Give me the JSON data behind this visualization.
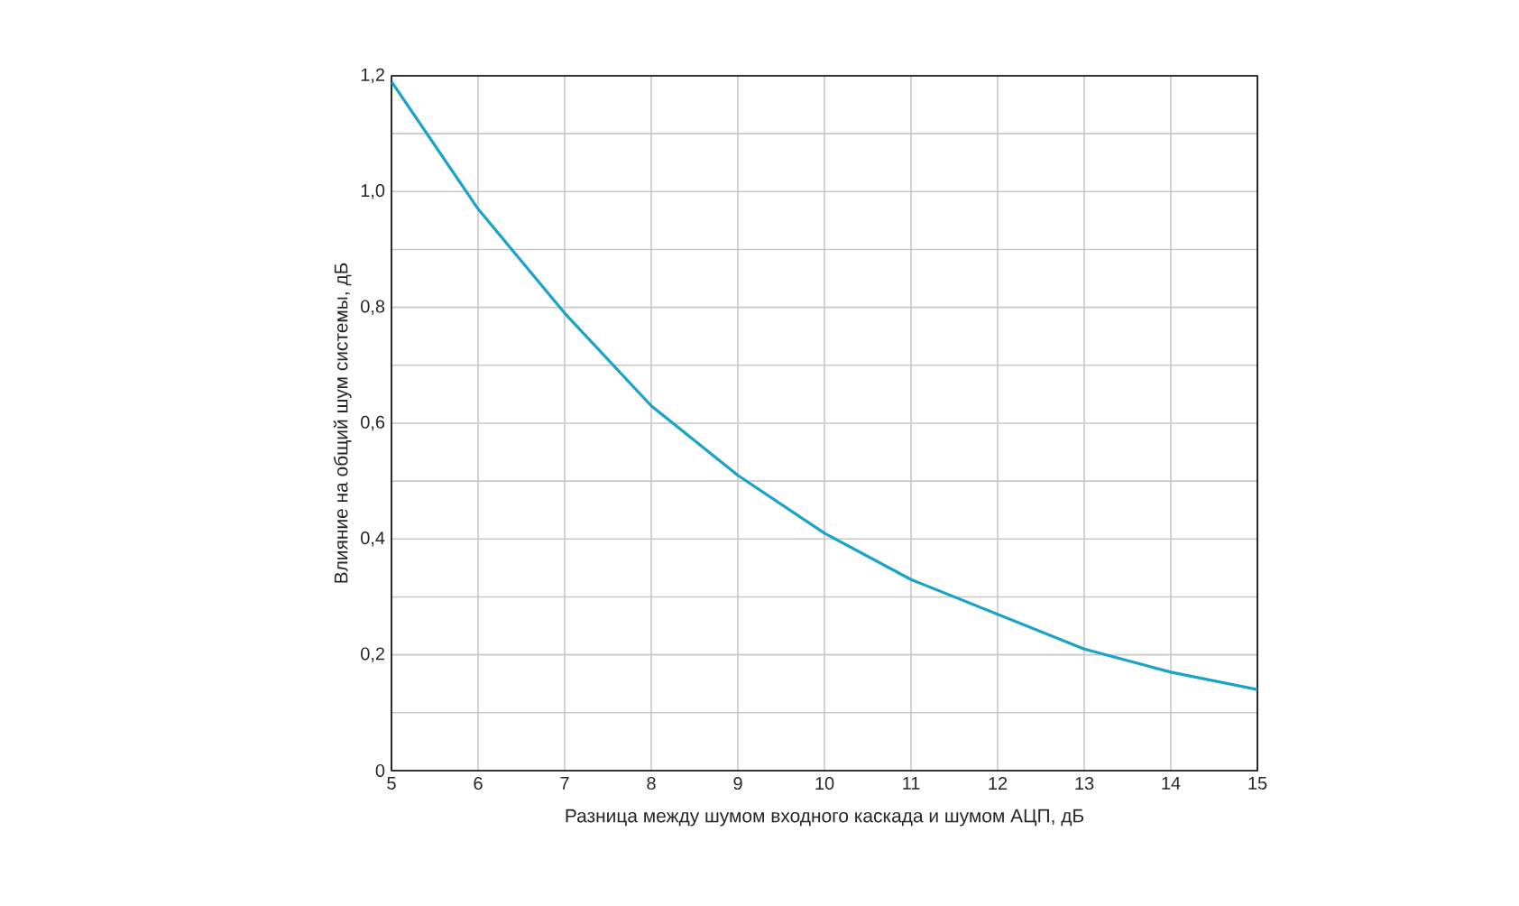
{
  "chart_data": {
    "type": "line",
    "xlabel": "Разница между шумом входного каскада и шумом АЦП, дБ",
    "ylabel": "Влияние на общий шум системы, дБ",
    "x": [
      5,
      6,
      7,
      8,
      9,
      10,
      11,
      12,
      13,
      14,
      15
    ],
    "series": [
      {
        "color": "#1aa3c8",
        "values": [
          1.19,
          0.97,
          0.79,
          0.63,
          0.51,
          0.41,
          0.33,
          0.27,
          0.21,
          0.17,
          0.14
        ]
      }
    ],
    "xlim": [
      5,
      15
    ],
    "xticks": [
      5,
      6,
      7,
      8,
      9,
      10,
      11,
      12,
      13,
      14,
      15
    ],
    "ylim": [
      0,
      1.2
    ],
    "yticks": [
      0,
      {
        "value": 0.1,
        "label": null
      },
      {
        "value": 0.2,
        "label": "0,2"
      },
      {
        "value": 0.3,
        "label": null
      },
      {
        "value": 0.4,
        "label": "0,4"
      },
      {
        "value": 0.5,
        "label": null
      },
      {
        "value": 0.6,
        "label": "0,6"
      },
      {
        "value": 0.7,
        "label": null
      },
      {
        "value": 0.8,
        "label": "0,8"
      },
      {
        "value": 0.9,
        "label": null
      },
      {
        "value": 1.0,
        "label": "1,0"
      },
      {
        "value": 1.1,
        "label": null
      },
      {
        "value": 1.2,
        "label": "1,2"
      }
    ],
    "grid": true,
    "marker": "none",
    "line_style": "solid"
  }
}
